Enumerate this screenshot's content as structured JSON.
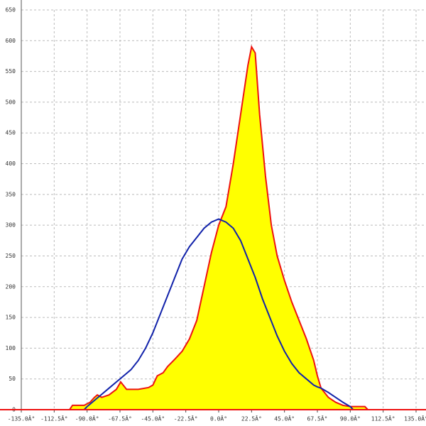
{
  "chart_data": {
    "type": "area",
    "xlim": [
      -135,
      135
    ],
    "ylim": [
      0,
      650
    ],
    "xticks": [
      {
        "value": -135,
        "label": "-135.0Â°"
      },
      {
        "value": -112.5,
        "label": "-112.5Â°"
      },
      {
        "value": -90,
        "label": "-90.0Â°"
      },
      {
        "value": -67.5,
        "label": "-67.5Â°"
      },
      {
        "value": -45,
        "label": "-45.0Â°"
      },
      {
        "value": -22.5,
        "label": "-22.5Â°"
      },
      {
        "value": 0,
        "label": "0.0Â°"
      },
      {
        "value": 22.5,
        "label": "22.5Â°"
      },
      {
        "value": 45,
        "label": "45.0Â°"
      },
      {
        "value": 67.5,
        "label": "67.5Â°"
      },
      {
        "value": 90,
        "label": "90.0Â°"
      },
      {
        "value": 112.5,
        "label": "112.5Â°"
      },
      {
        "value": 135,
        "label": "135.0Â°"
      }
    ],
    "yticks": [
      0,
      50,
      100,
      150,
      200,
      250,
      300,
      350,
      400,
      450,
      500,
      550,
      600,
      650
    ],
    "grid": true,
    "series": [
      {
        "color": "#ee1111",
        "fill": "#ffff00",
        "x": [
          -135,
          -102,
          -100,
          -92,
          -88,
          -85,
          -83,
          -80,
          -75,
          -70,
          -67,
          -63,
          -55,
          -48,
          -45,
          -42,
          -38,
          -35,
          -30,
          -25,
          -20,
          -15,
          -10,
          -5,
          0,
          5,
          10,
          15,
          20,
          22.5,
          25,
          28,
          32,
          36,
          40,
          45,
          50,
          55,
          60,
          65,
          67.5,
          70,
          75,
          80,
          85,
          90,
          95,
          100,
          102,
          135
        ],
        "values": [
          0,
          0,
          7,
          7,
          12,
          20,
          24,
          20,
          24,
          33,
          45,
          33,
          33,
          36,
          40,
          55,
          60,
          70,
          82,
          95,
          115,
          145,
          200,
          255,
          300,
          330,
          400,
          480,
          560,
          590,
          580,
          480,
          380,
          300,
          250,
          210,
          175,
          145,
          115,
          80,
          55,
          35,
          20,
          12,
          7,
          5,
          5,
          5,
          0,
          0
        ]
      },
      {
        "color": "#1122aa",
        "x": [
          -92,
          -90,
          -85,
          -80,
          -75,
          -70,
          -65,
          -60,
          -55,
          -50,
          -45,
          -40,
          -35,
          -30,
          -25,
          -20,
          -15,
          -10,
          -5,
          0,
          5,
          10,
          15,
          20,
          25,
          30,
          35,
          40,
          45,
          50,
          55,
          60,
          65,
          67.5,
          70,
          75,
          80,
          85,
          90,
          92
        ],
        "values": [
          0,
          5,
          15,
          25,
          35,
          45,
          55,
          65,
          80,
          100,
          125,
          155,
          185,
          215,
          245,
          265,
          280,
          295,
          305,
          310,
          305,
          295,
          275,
          245,
          215,
          180,
          150,
          120,
          95,
          75,
          60,
          50,
          40,
          37,
          35,
          28,
          20,
          12,
          5,
          0
        ]
      }
    ]
  }
}
